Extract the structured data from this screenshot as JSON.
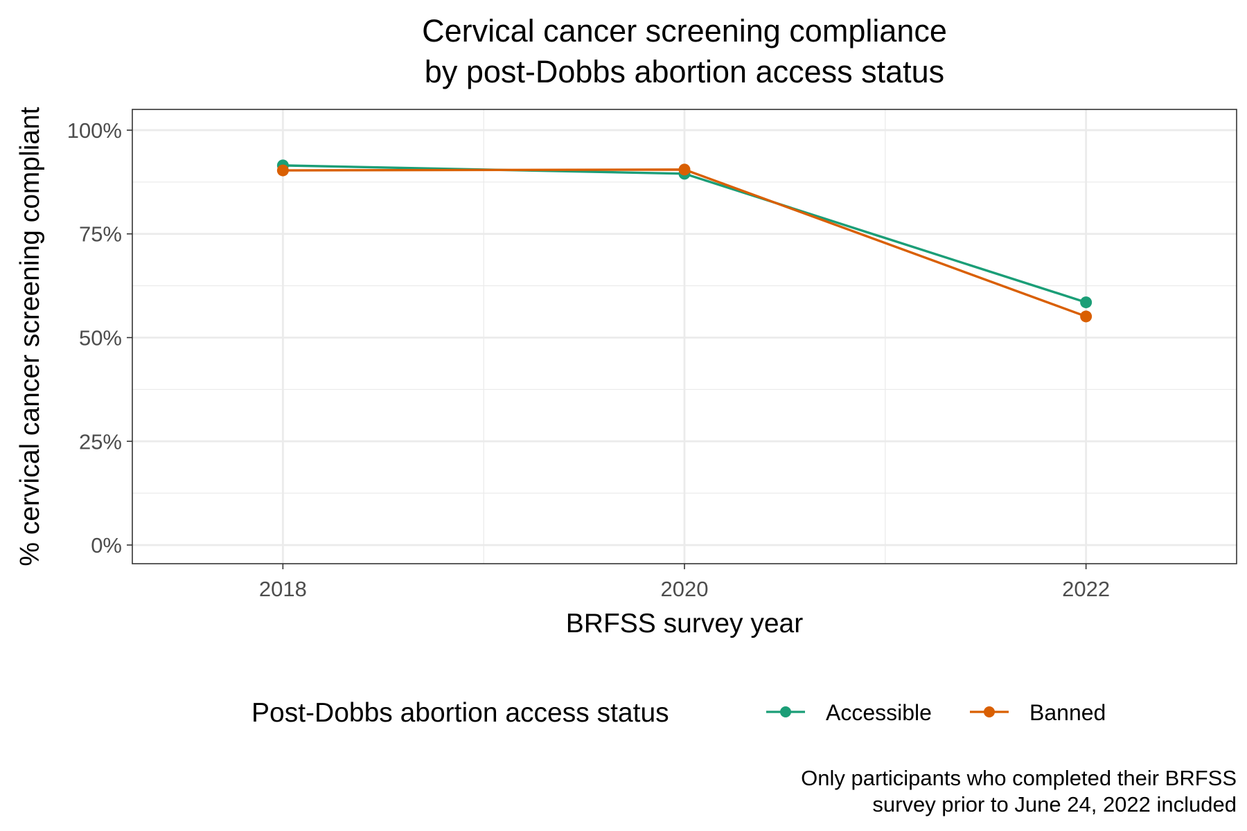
{
  "chart_data": {
    "type": "line",
    "title": [
      "Cervical cancer screening compliance",
      "by post-Dobbs abortion access status"
    ],
    "xlabel": "BRFSS survey year",
    "ylabel": "% cervical cancer screening compliant",
    "x": [
      2018,
      2020,
      2022
    ],
    "x_tick_labels": [
      "2018",
      "2020",
      "2022"
    ],
    "xlim": [
      2017.25,
      2022.75
    ],
    "ylim": [
      -0.045,
      1.05
    ],
    "y_ticks": [
      0,
      0.25,
      0.5,
      0.75,
      1.0
    ],
    "y_tick_labels": [
      "0%",
      "25%",
      "50%",
      "75%",
      "100%"
    ],
    "grid": true,
    "legend_position": "bottom",
    "legend_title": "Post-Dobbs abortion access status",
    "series": [
      {
        "name": "Accessible",
        "color": "#1b9e77",
        "values": [
          0.915,
          0.895,
          0.585
        ]
      },
      {
        "name": "Banned",
        "color": "#d95f02",
        "values": [
          0.903,
          0.905,
          0.551
        ]
      }
    ],
    "caption": [
      "Only participants who completed their BRFSS",
      "survey prior to June 24, 2022 included"
    ]
  }
}
